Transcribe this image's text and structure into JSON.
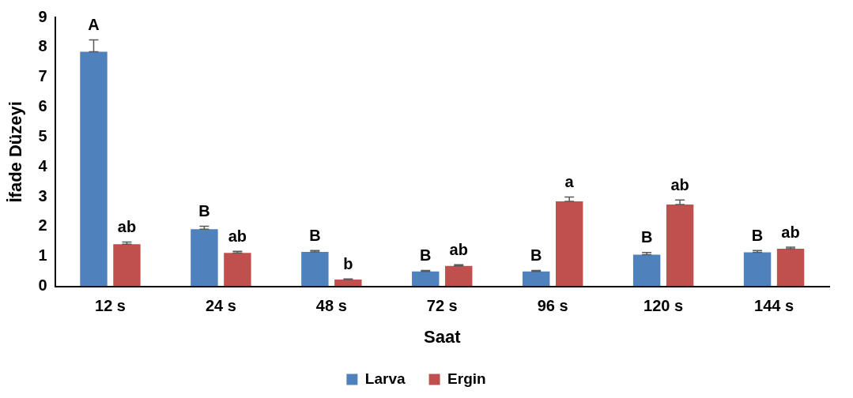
{
  "chart_data": {
    "type": "bar",
    "xlabel": "Saat",
    "ylabel": "İfade Düzeyi",
    "categories": [
      "12 s",
      "24 s",
      "48 s",
      "72 s",
      "96 s",
      "120 s",
      "144 s"
    ],
    "series": [
      {
        "name": "Larva",
        "color": "#4f81bd",
        "values": [
          7.85,
          1.91,
          1.15,
          0.5,
          0.5,
          1.06,
          1.14
        ],
        "errors": [
          [
            7.85,
            8.25
          ],
          [
            1.91,
            2.01
          ],
          [
            1.15,
            1.2
          ],
          [
            0.5,
            0.53
          ],
          [
            0.5,
            0.53
          ],
          [
            1.06,
            1.13
          ],
          [
            1.14,
            1.2
          ]
        ]
      },
      {
        "name": "Ergin",
        "color": "#c0504d",
        "values": [
          1.41,
          1.12,
          0.23,
          0.68,
          2.84,
          2.74,
          1.26
        ],
        "errors": [
          [
            1.41,
            1.48
          ],
          [
            1.12,
            1.17
          ],
          [
            0.23,
            0.25
          ],
          [
            0.68,
            0.72
          ],
          [
            2.84,
            2.99
          ],
          [
            2.74,
            2.89
          ],
          [
            1.26,
            1.31
          ]
        ]
      }
    ],
    "ylim": [
      0,
      9
    ],
    "yticks": [
      0,
      1,
      2,
      3,
      4,
      5,
      6,
      7,
      8,
      9
    ],
    "grid": false,
    "legend": "bottom",
    "annotations": [
      {
        "text": "A",
        "x": "12 s",
        "y": 7.85
      },
      {
        "text": "ab",
        "x": "12 s",
        "y": 1.41
      },
      {
        "text": "B",
        "x": "24 s",
        "y": 1.91
      },
      {
        "text": "ab",
        "x": "24 s",
        "y": 1.12
      },
      {
        "text": "B",
        "x": "48 s",
        "y": 1.15
      },
      {
        "text": "b",
        "x": "48 s",
        "y": 0.23
      },
      {
        "text": "B",
        "x": "72 s",
        "y": 0.5
      },
      {
        "text": "ab",
        "x": "72 s",
        "y": 0.68
      },
      {
        "text": "B",
        "x": "96 s",
        "y": 0.5
      },
      {
        "text": "a",
        "x": "96 s",
        "y": 2.84
      },
      {
        "text": "B",
        "x": "120 s",
        "y": 1.06
      },
      {
        "text": "ab",
        "x": "120 s",
        "y": 2.74
      },
      {
        "text": "B",
        "x": "144 s",
        "y": 1.14
      },
      {
        "text": "ab",
        "x": "144 s",
        "y": 1.26
      }
    ]
  }
}
